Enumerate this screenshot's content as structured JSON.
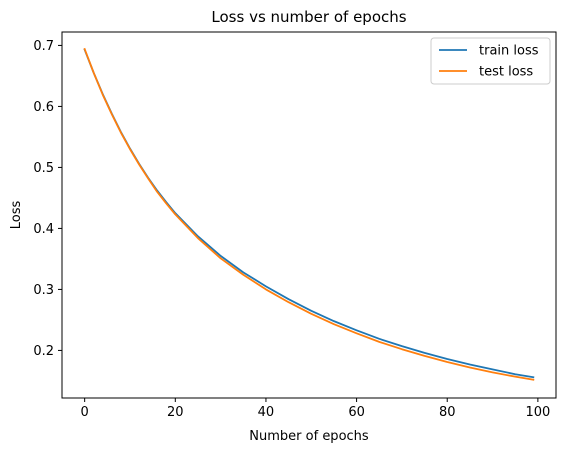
{
  "chart_data": {
    "type": "line",
    "title": "Loss vs number of epochs",
    "xlabel": "Number of epochs",
    "ylabel": "Loss",
    "xlim": [
      -5,
      104
    ],
    "ylim": [
      0.122,
      0.722
    ],
    "xticks": [
      0,
      20,
      40,
      60,
      80,
      100
    ],
    "xtick_labels": [
      "0",
      "20",
      "40",
      "60",
      "80",
      "100"
    ],
    "yticks": [
      0.2,
      0.3,
      0.4,
      0.5,
      0.6,
      0.7
    ],
    "ytick_labels": [
      "0.2",
      "0.3",
      "0.4",
      "0.5",
      "0.6",
      "0.7"
    ],
    "grid": false,
    "legend_position": "top-right",
    "x": [
      0,
      2,
      4,
      6,
      8,
      10,
      12,
      14,
      16,
      18,
      20,
      25,
      30,
      35,
      40,
      45,
      50,
      55,
      60,
      65,
      70,
      75,
      80,
      85,
      90,
      95,
      99
    ],
    "series": [
      {
        "name": "train loss",
        "color": "#1f77b4",
        "values": [
          0.693,
          0.655,
          0.62,
          0.588,
          0.558,
          0.531,
          0.506,
          0.483,
          0.462,
          0.443,
          0.425,
          0.387,
          0.355,
          0.328,
          0.305,
          0.284,
          0.265,
          0.248,
          0.233,
          0.219,
          0.207,
          0.196,
          0.186,
          0.177,
          0.169,
          0.161,
          0.156
        ]
      },
      {
        "name": "test loss",
        "color": "#ff7f0e",
        "values": [
          0.694,
          0.655,
          0.619,
          0.587,
          0.557,
          0.53,
          0.505,
          0.482,
          0.46,
          0.441,
          0.423,
          0.384,
          0.351,
          0.324,
          0.3,
          0.279,
          0.26,
          0.243,
          0.228,
          0.214,
          0.202,
          0.191,
          0.181,
          0.172,
          0.164,
          0.157,
          0.152
        ]
      }
    ]
  }
}
